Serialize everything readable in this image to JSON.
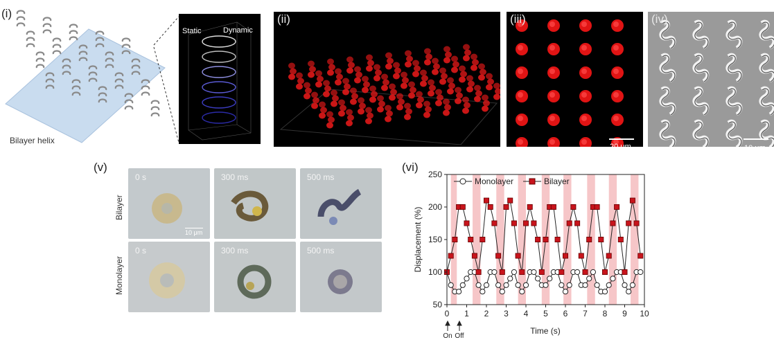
{
  "panels": {
    "i": {
      "label": "(i)",
      "static_label": "Static",
      "dynamic_label": "Dynamic",
      "caption": "Bilayer helix"
    },
    "ii": {
      "label": "(ii)"
    },
    "iii": {
      "label": "(iii)",
      "scalebar": "20 μm"
    },
    "iv": {
      "label": "(iv)",
      "scalebar": "10 μm"
    },
    "v": {
      "label": "(v)",
      "rows": [
        "Bilayer",
        "Monolayer"
      ],
      "times": [
        "0 s",
        "300 ms",
        "500 ms"
      ],
      "scalebar": "10 μm"
    },
    "vi": {
      "label": "(vi)",
      "on_label": "On",
      "off_label": "Off"
    }
  },
  "colors": {
    "bilayer": "#c8141c",
    "monolayer": "#ffffff",
    "highlight": "#f6c6c8",
    "red_helix": "#e01818"
  },
  "chart_data": {
    "type": "line",
    "xlabel": "Time (s)",
    "ylabel": "Displacement (%)",
    "xlim": [
      0,
      10
    ],
    "ylim": [
      50,
      250
    ],
    "xticks": [
      0,
      1,
      2,
      3,
      4,
      5,
      6,
      7,
      8,
      9,
      10
    ],
    "yticks": [
      50,
      100,
      150,
      200,
      250
    ],
    "legend_position": "top",
    "on_intervals": [
      [
        0.2,
        0.5
      ],
      [
        1.3,
        1.7
      ],
      [
        2.5,
        2.9
      ],
      [
        3.6,
        4.0
      ],
      [
        4.8,
        5.2
      ],
      [
        5.9,
        6.3
      ],
      [
        7.1,
        7.5
      ],
      [
        8.2,
        8.6
      ],
      [
        9.3,
        9.7
      ]
    ],
    "series": [
      {
        "name": "Monolayer",
        "marker": "open-circle",
        "x": [
          0,
          0.2,
          0.4,
          0.6,
          0.8,
          1.0,
          1.2,
          1.4,
          1.6,
          1.8,
          2.0,
          2.2,
          2.4,
          2.6,
          2.8,
          3.0,
          3.2,
          3.4,
          3.6,
          3.8,
          4.0,
          4.2,
          4.4,
          4.6,
          4.8,
          5.0,
          5.2,
          5.4,
          5.6,
          5.8,
          6.0,
          6.2,
          6.4,
          6.6,
          6.8,
          7.0,
          7.2,
          7.4,
          7.6,
          7.8,
          8.0,
          8.2,
          8.4,
          8.6,
          8.8,
          9.0,
          9.2,
          9.4,
          9.6,
          9.8
        ],
        "y": [
          100,
          80,
          70,
          70,
          80,
          90,
          100,
          100,
          80,
          70,
          80,
          100,
          100,
          80,
          70,
          80,
          90,
          100,
          80,
          70,
          80,
          100,
          100,
          90,
          80,
          80,
          90,
          100,
          100,
          80,
          70,
          80,
          100,
          100,
          80,
          80,
          90,
          100,
          80,
          70,
          70,
          80,
          90,
          100,
          100,
          80,
          70,
          80,
          100,
          100
        ]
      },
      {
        "name": "Bilayer",
        "marker": "filled-square",
        "x": [
          0,
          0.2,
          0.4,
          0.6,
          0.8,
          1.0,
          1.2,
          1.4,
          1.6,
          1.8,
          2.0,
          2.2,
          2.4,
          2.6,
          2.8,
          3.0,
          3.2,
          3.4,
          3.6,
          3.8,
          4.0,
          4.2,
          4.4,
          4.6,
          4.8,
          5.0,
          5.2,
          5.4,
          5.6,
          5.8,
          6.0,
          6.2,
          6.4,
          6.6,
          6.8,
          7.0,
          7.2,
          7.4,
          7.6,
          7.8,
          8.0,
          8.2,
          8.4,
          8.6,
          8.8,
          9.0,
          9.2,
          9.4,
          9.6,
          9.8
        ],
        "y": [
          100,
          125,
          150,
          200,
          200,
          175,
          150,
          125,
          100,
          150,
          210,
          200,
          175,
          125,
          100,
          200,
          210,
          175,
          125,
          100,
          175,
          200,
          175,
          150,
          100,
          150,
          200,
          200,
          150,
          100,
          125,
          175,
          200,
          175,
          125,
          100,
          150,
          200,
          200,
          150,
          100,
          125,
          175,
          200,
          150,
          100,
          175,
          210,
          175,
          125
        ]
      }
    ]
  }
}
